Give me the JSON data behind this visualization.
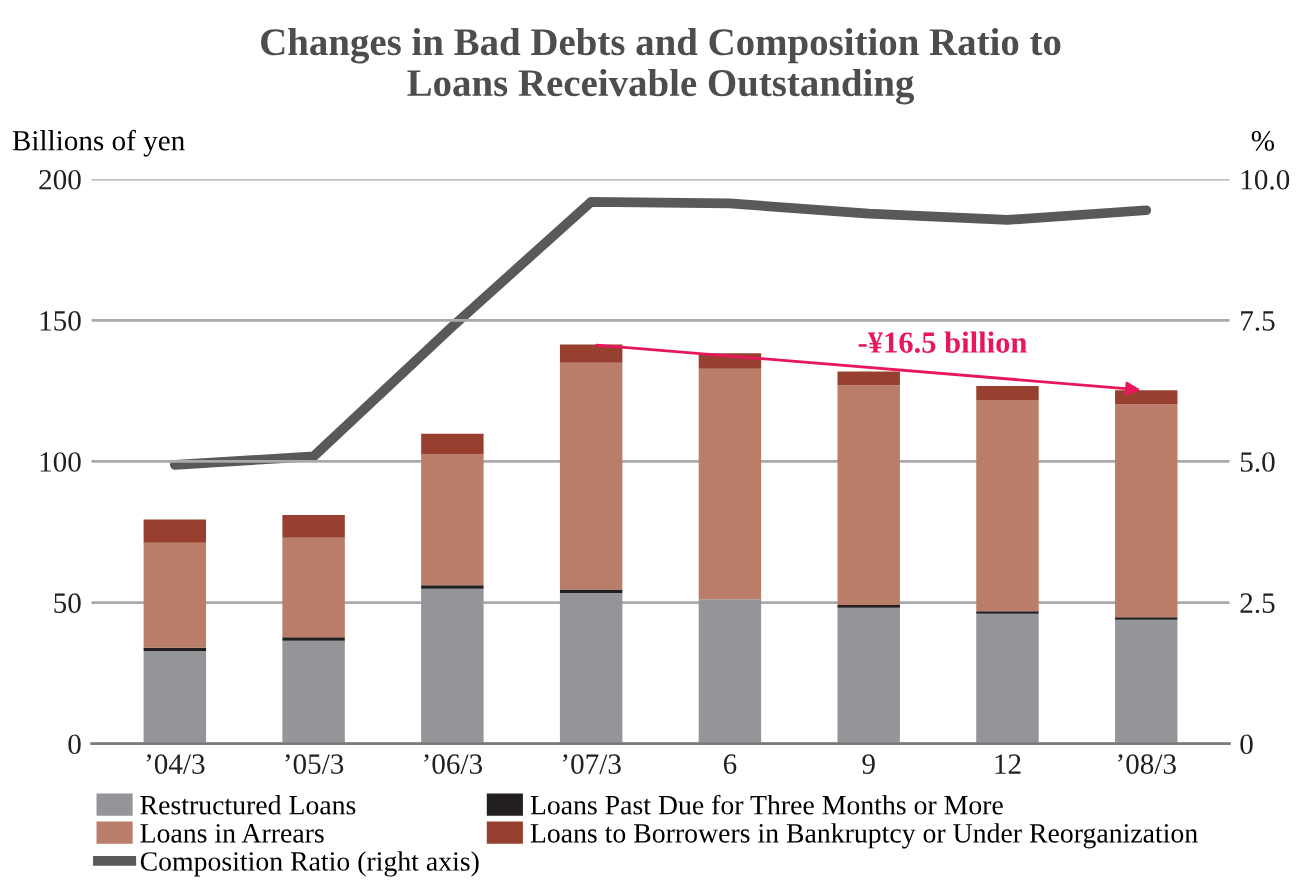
{
  "chart_data": {
    "type": "bar",
    "title": "Changes in Bad Debts and Composition Ratio to\nLoans Receivable Outstanding",
    "ylabel": "Billions of yen",
    "y2label": "%",
    "categories": [
      "’04/3",
      "’05/3",
      "’06/3",
      "’07/3",
      "6",
      "9",
      "12",
      "’08/3"
    ],
    "stacked": true,
    "series": [
      {
        "name": "Restructured Loans",
        "color": "#939598",
        "values": [
          32.8,
          36.5,
          54.9,
          53.4,
          51.2,
          48.2,
          46.0,
          43.9
        ]
      },
      {
        "name": "Loans Past Due for Three Months or More",
        "color": "#231f20",
        "values": [
          1.2,
          1.2,
          1.2,
          1.2,
          0,
          0.9,
          0.9,
          0.9
        ]
      },
      {
        "name": "Loans in Arrears",
        "color": "#b97d6a",
        "values": [
          37.2,
          35.3,
          46.4,
          80.4,
          81.6,
          77.9,
          74.9,
          75.4
        ]
      },
      {
        "name": "Loans to Borrowers in Bankruptcy or Under Reorganization",
        "color": "#97402f",
        "values": [
          8.2,
          8.0,
          7.3,
          6.4,
          5.5,
          4.9,
          4.9,
          5.0
        ]
      },
      {
        "name": "Composition Ratio (right axis)",
        "type": "line",
        "axis": "y2",
        "color": "#58595b",
        "values": [
          4.94,
          5.09,
          7.39,
          9.6,
          9.57,
          9.39,
          9.28,
          9.45
        ]
      }
    ],
    "ylim": [
      0,
      200
    ],
    "yticks": [
      0,
      50,
      100,
      150,
      200
    ],
    "y2lim": [
      0,
      10
    ],
    "y2ticks": [
      {
        "value": 0,
        "label": "0"
      },
      {
        "value": 2.5,
        "label": "2.5"
      },
      {
        "value": 5,
        "label": "5.0"
      },
      {
        "value": 7.5,
        "label": "7.5"
      },
      {
        "value": 10,
        "label": "10.0"
      }
    ],
    "annotations": [
      {
        "text": "-¥16.5 billion",
        "x": "9",
        "y": 133.3
      }
    ],
    "grid": "y",
    "legend": "bottom",
    "marker": "none",
    "line_style": "solid"
  }
}
